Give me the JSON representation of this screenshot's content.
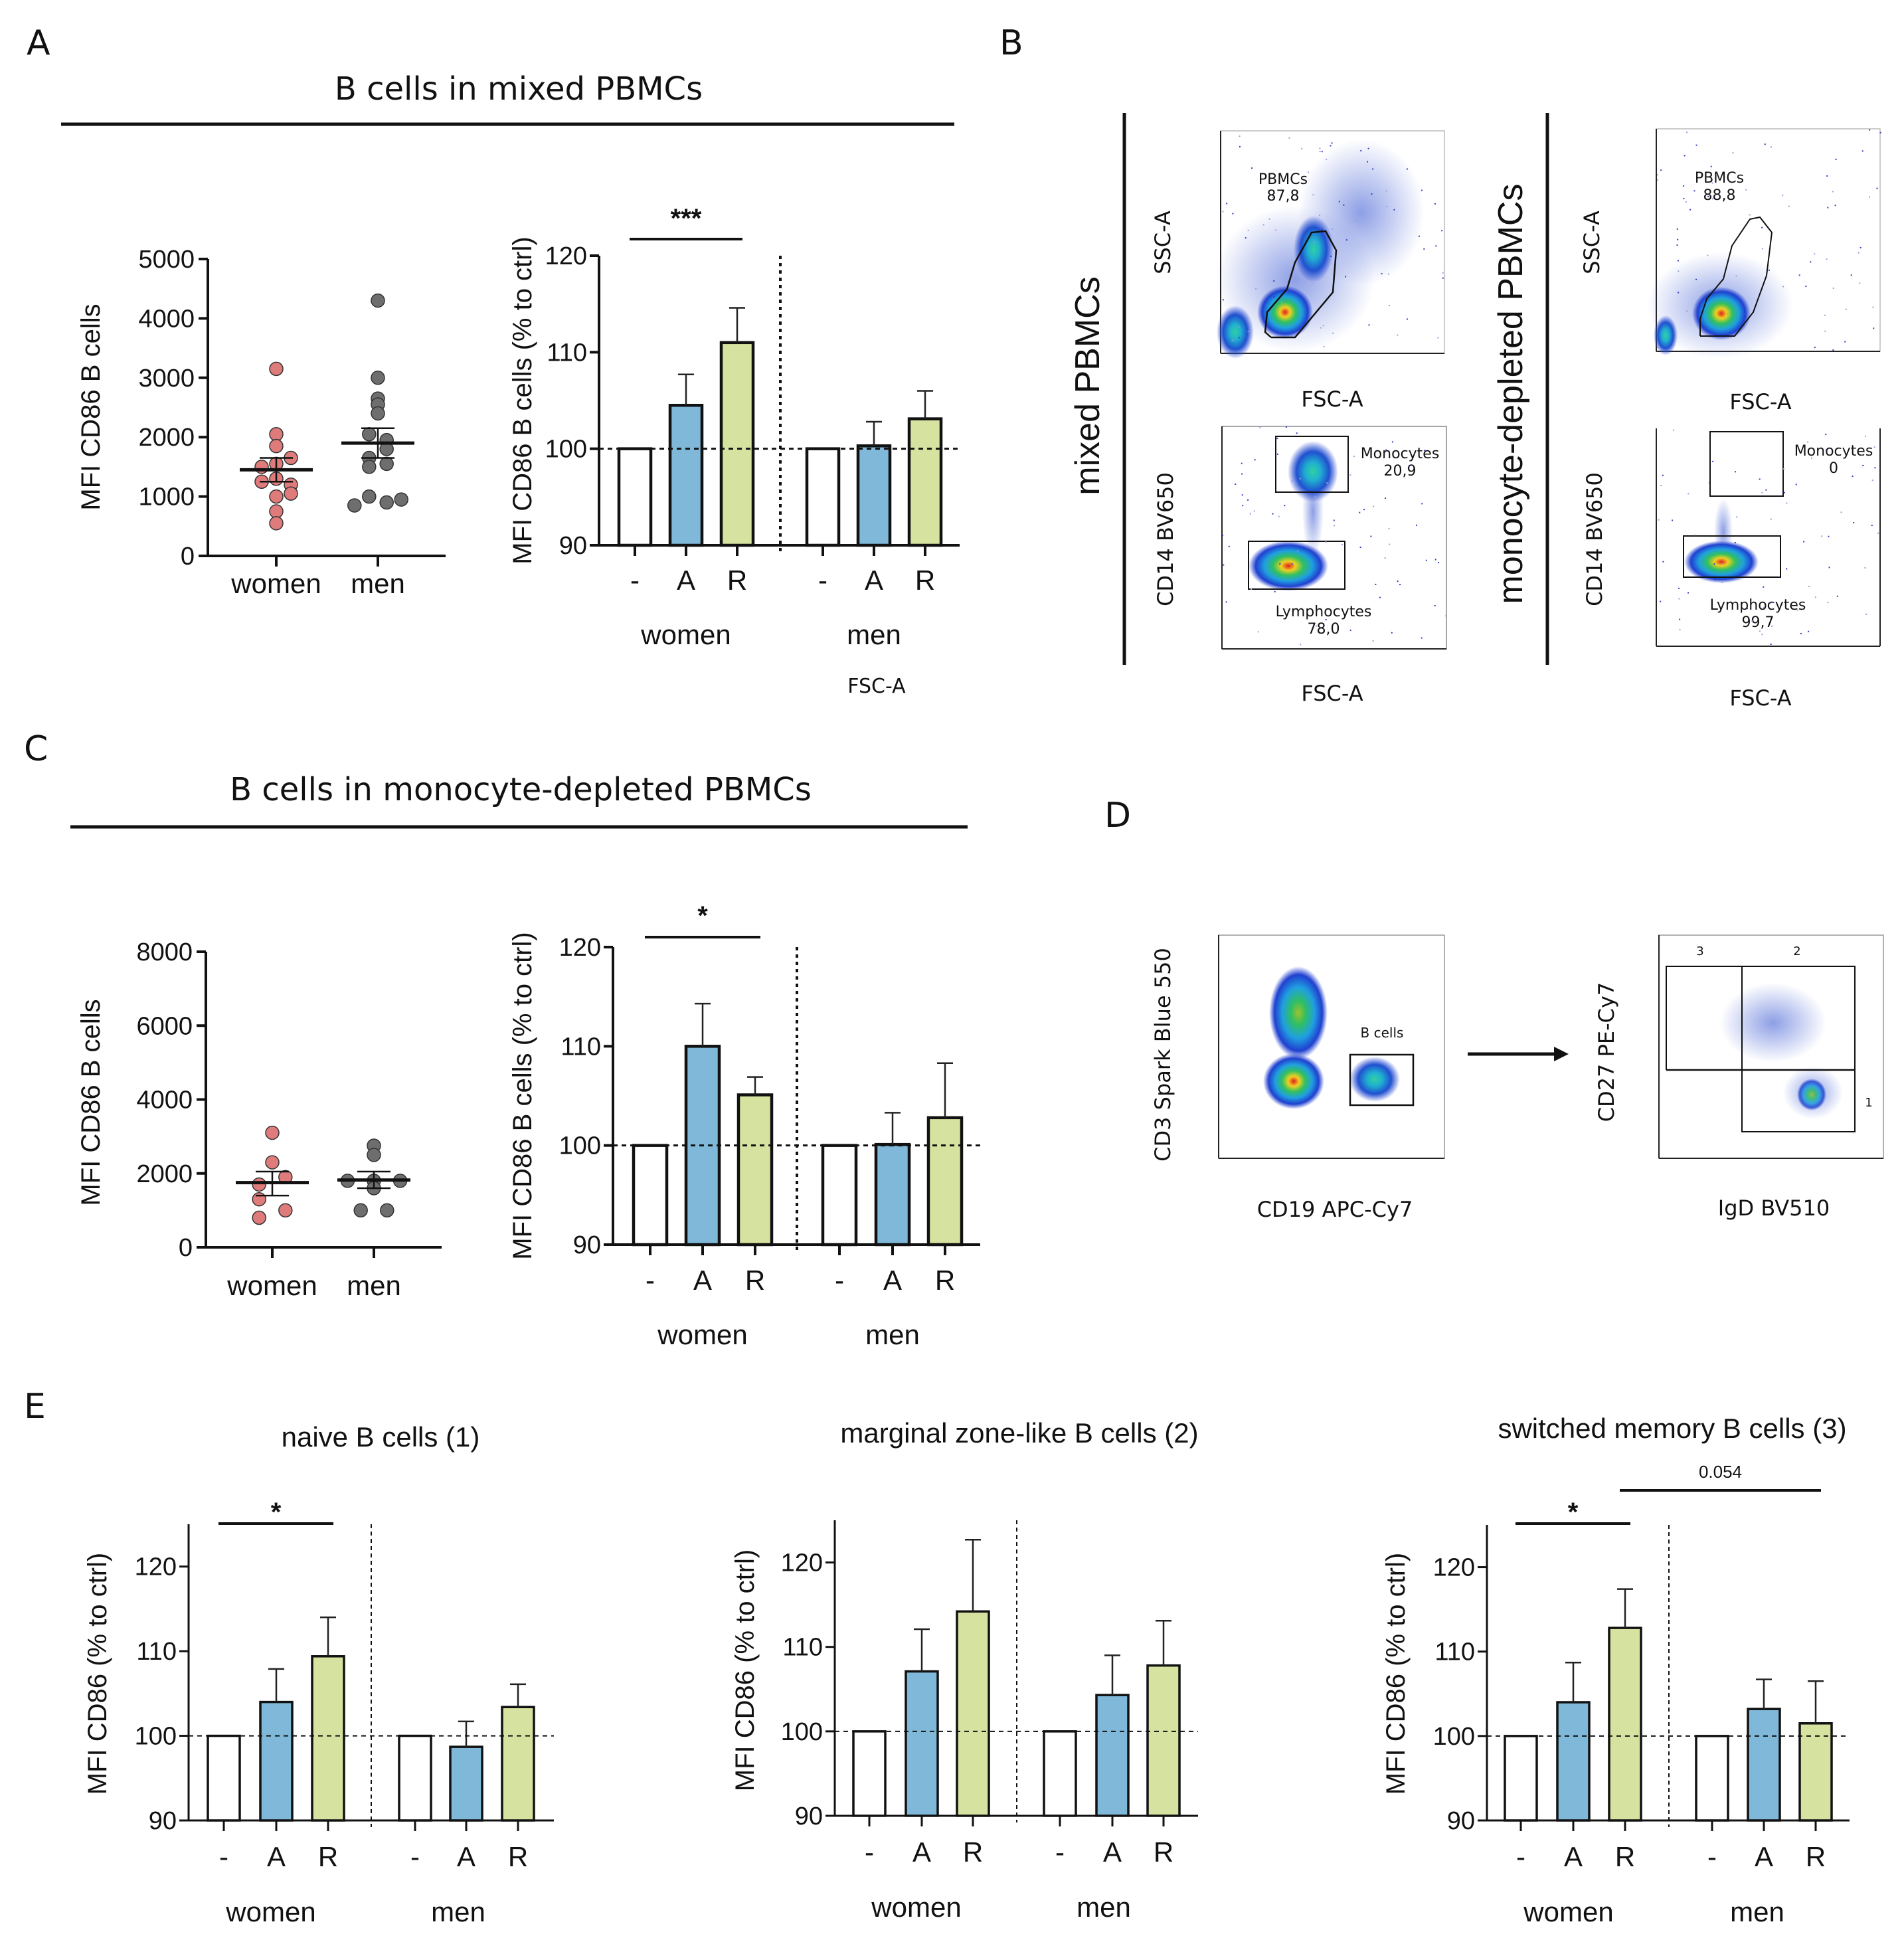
{
  "figure": {
    "panels": {
      "A": "A",
      "B": "B",
      "C": "C",
      "D": "D",
      "E": "E"
    },
    "section_titles": {
      "A": "B cells in mixed PBMCs",
      "C": "B cells in monocyte-depleted PBMCs"
    },
    "stray_label": "FSC-A",
    "colors": {
      "women_dot": "#e07b7b",
      "men_dot": "#6e6e6e",
      "ctrl_bar": "#ffffff",
      "A_bar": "#7fb8d8",
      "R_bar": "#d6e3a0"
    },
    "flow": {
      "B_group_labels": [
        "mixed PBMCs",
        "monocyte-depleted PBMCs"
      ],
      "plots": [
        {
          "id": "mixed-scatter",
          "ylabel": "SSC-A",
          "xlabel": "FSC-A",
          "gate": "PBMCs",
          "value": "87,8",
          "xticks": [
            "0",
            "1,0M",
            "2,0M",
            "3,0M",
            "4,0M"
          ],
          "yticks": [
            "0",
            "1,0M",
            "2,0M",
            "3,0M",
            "4,0M"
          ]
        },
        {
          "id": "mixed-cd14",
          "ylabel": "CD14 BV650",
          "xlabel": "FSC-A",
          "gates": [
            {
              "name": "Monocytes",
              "value": "20,9"
            },
            {
              "name": "Lymphocytes",
              "value": "78,0"
            }
          ],
          "xticks": [
            "0",
            "1,0M",
            "2,0M",
            "3,0M",
            "4,0M"
          ],
          "yticks": [
            "-10³",
            "0",
            "10⁴",
            "10⁵"
          ]
        },
        {
          "id": "depleted-scatter",
          "ylabel": "SSC-A",
          "xlabel": "FSC-A",
          "gate": "PBMCs",
          "value": "88,8",
          "xticks": [
            "0",
            "1,0M",
            "2,0M",
            "3,0M",
            "4,0M"
          ],
          "yticks": [
            "0",
            "1,0M",
            "2,0M",
            "3,0M",
            "4,0M"
          ]
        },
        {
          "id": "depleted-cd14",
          "ylabel": "CD14 BV650",
          "xlabel": "FSC-A",
          "gates": [
            {
              "name": "Monocytes",
              "value": "0"
            },
            {
              "name": "Lymphocytes",
              "value": "99,7"
            }
          ],
          "xticks": [
            "0",
            "1,0M",
            "2,0M",
            "3,0M",
            "4,0M"
          ],
          "yticks": [
            "-10³",
            "0",
            "10⁴",
            "10⁵"
          ]
        },
        {
          "id": "cd3-cd19",
          "ylabel": "CD3 Spark Blue 550",
          "xlabel": "CD19 APC-Cy7",
          "gate": "B cells",
          "xticks": [
            "0",
            "10⁴",
            "10⁵"
          ],
          "yticks": [
            "-10⁴",
            "0",
            "10⁴",
            "10⁵"
          ]
        },
        {
          "id": "cd27-igd",
          "ylabel": "CD27 PE-Cy7",
          "xlabel": "IgD BV510",
          "quadrants": [
            "3",
            "2",
            "1"
          ],
          "xticks": [
            "-10⁴",
            "0",
            "10⁴",
            "10⁵",
            "10⁶"
          ],
          "yticks": [
            "0",
            "10⁴",
            "10⁵",
            "10⁶"
          ]
        }
      ]
    }
  },
  "chart_data": [
    {
      "id": "A-scatter",
      "type": "scatter",
      "title": "",
      "ylabel": "MFI CD86 B cells",
      "categories": [
        "women",
        "men"
      ],
      "ylim": [
        0,
        5000
      ],
      "yticks": [
        0,
        1000,
        2000,
        3000,
        4000,
        5000
      ],
      "series": [
        {
          "name": "women",
          "values": [
            3150,
            2050,
            1850,
            1650,
            1550,
            1500,
            1300,
            1250,
            1200,
            1050,
            1000,
            750,
            550
          ],
          "jitter": [
            0,
            0,
            0,
            1,
            0,
            -1,
            0,
            -1,
            1,
            1,
            0,
            0,
            0
          ],
          "mean": 1450,
          "sem": [
            1250,
            1650
          ]
        },
        {
          "name": "men",
          "values": [
            4300,
            3000,
            2650,
            2550,
            2400,
            2050,
            1950,
            1800,
            1650,
            1550,
            1500,
            1000,
            950,
            900,
            850
          ],
          "jitter": [
            0,
            0,
            0,
            0,
            0,
            -0.6,
            0.6,
            0.6,
            -0.6,
            0.6,
            -0.6,
            -0.6,
            1.6,
            0.6,
            -1.6
          ],
          "mean": 1900,
          "sem": [
            1650,
            2150
          ]
        }
      ]
    },
    {
      "id": "A-bar",
      "type": "bar",
      "ylabel": "MFI CD86 B cells (% to ctrl)",
      "ylim": [
        90,
        120
      ],
      "yticks": [
        90,
        100,
        110,
        120
      ],
      "reference_line": 100,
      "groups": [
        "women",
        "men"
      ],
      "categories": [
        "-",
        "A",
        "R"
      ],
      "series": [
        {
          "group": "women",
          "values": [
            100,
            104.5,
            111
          ],
          "errors": [
            0,
            3.2,
            3.6
          ]
        },
        {
          "group": "men",
          "values": [
            100,
            100.3,
            103.1
          ],
          "errors": [
            0,
            2.5,
            2.9
          ]
        }
      ],
      "significance": [
        {
          "from": "women.-",
          "to": "women.R",
          "label": "***"
        }
      ]
    },
    {
      "id": "C-scatter",
      "type": "scatter",
      "ylabel": "MFI CD86 B cells",
      "categories": [
        "women",
        "men"
      ],
      "ylim": [
        0,
        8000
      ],
      "yticks": [
        0,
        2000,
        4000,
        6000,
        8000
      ],
      "series": [
        {
          "name": "women",
          "values": [
            3100,
            2300,
            1900,
            1700,
            1300,
            1000,
            800
          ],
          "jitter": [
            0,
            0,
            0.9,
            -0.9,
            -0.9,
            0.9,
            -0.9
          ],
          "mean": 1750,
          "sem": [
            1400,
            2050
          ]
        },
        {
          "name": "men",
          "values": [
            2750,
            2500,
            1800,
            1800,
            1800,
            1600,
            1000,
            1000
          ],
          "jitter": [
            0,
            0,
            -1.8,
            0,
            1.8,
            0,
            -0.9,
            0.9
          ],
          "mean": 1820,
          "sem": [
            1600,
            2050
          ]
        }
      ]
    },
    {
      "id": "C-bar",
      "type": "bar",
      "ylabel": "MFI CD86 B cells (% to ctrl)",
      "ylim": [
        90,
        120
      ],
      "yticks": [
        90,
        100,
        110,
        120
      ],
      "reference_line": 100,
      "groups": [
        "women",
        "men"
      ],
      "categories": [
        "-",
        "A",
        "R"
      ],
      "series": [
        {
          "group": "women",
          "values": [
            100,
            110,
            105.1
          ],
          "errors": [
            0,
            4.3,
            1.8
          ]
        },
        {
          "group": "men",
          "values": [
            100,
            100.1,
            102.8
          ],
          "errors": [
            0,
            3.2,
            5.5
          ]
        }
      ],
      "significance": [
        {
          "from": "women.-",
          "to": "women.R",
          "label": "*"
        }
      ]
    },
    {
      "id": "E-naive",
      "type": "bar",
      "title": "naive B cells (1)",
      "ylabel": "MFI CD86 (% to ctrl)",
      "ylim": [
        90,
        125
      ],
      "yticks": [
        90,
        100,
        110,
        120
      ],
      "reference_line": 100,
      "groups": [
        "women",
        "men"
      ],
      "categories": [
        "-",
        "A",
        "R"
      ],
      "series": [
        {
          "group": "women",
          "values": [
            100,
            104,
            109.4
          ],
          "errors": [
            0,
            3.9,
            4.6
          ]
        },
        {
          "group": "men",
          "values": [
            100,
            98.7,
            103.4
          ],
          "errors": [
            0,
            3.0,
            2.7
          ]
        }
      ],
      "significance": [
        {
          "from": "women.-",
          "to": "women.R",
          "label": "*"
        }
      ]
    },
    {
      "id": "E-marginal",
      "type": "bar",
      "title": "marginal zone-like B cells (2)",
      "ylabel": "MFI CD86 (% to ctrl)",
      "ylim": [
        90,
        125
      ],
      "yticks": [
        90,
        100,
        110,
        120
      ],
      "reference_line": 100,
      "groups": [
        "women",
        "men"
      ],
      "categories": [
        "-",
        "A",
        "R"
      ],
      "series": [
        {
          "group": "women",
          "values": [
            100,
            107.1,
            114.2
          ],
          "errors": [
            0,
            5.0,
            8.5
          ]
        },
        {
          "group": "men",
          "values": [
            100,
            104.3,
            107.8
          ],
          "errors": [
            0,
            4.7,
            5.3
          ]
        }
      ],
      "significance": []
    },
    {
      "id": "E-switched",
      "type": "bar",
      "title": "switched memory B cells (3)",
      "ylabel": "MFI CD86 (% to ctrl)",
      "ylim": [
        90,
        125
      ],
      "yticks": [
        90,
        100,
        110,
        120
      ],
      "reference_line": 100,
      "groups": [
        "women",
        "men"
      ],
      "categories": [
        "-",
        "A",
        "R"
      ],
      "series": [
        {
          "group": "women",
          "values": [
            100,
            104,
            112.8
          ],
          "errors": [
            0,
            4.7,
            4.6
          ]
        },
        {
          "group": "men",
          "values": [
            100,
            103.2,
            101.5
          ],
          "errors": [
            0,
            3.5,
            5.0
          ]
        }
      ],
      "significance": [
        {
          "from": "women.-",
          "to": "women.R",
          "label": "*"
        },
        {
          "from": "women.R",
          "to": "men.R",
          "label": "0.054"
        }
      ]
    }
  ]
}
